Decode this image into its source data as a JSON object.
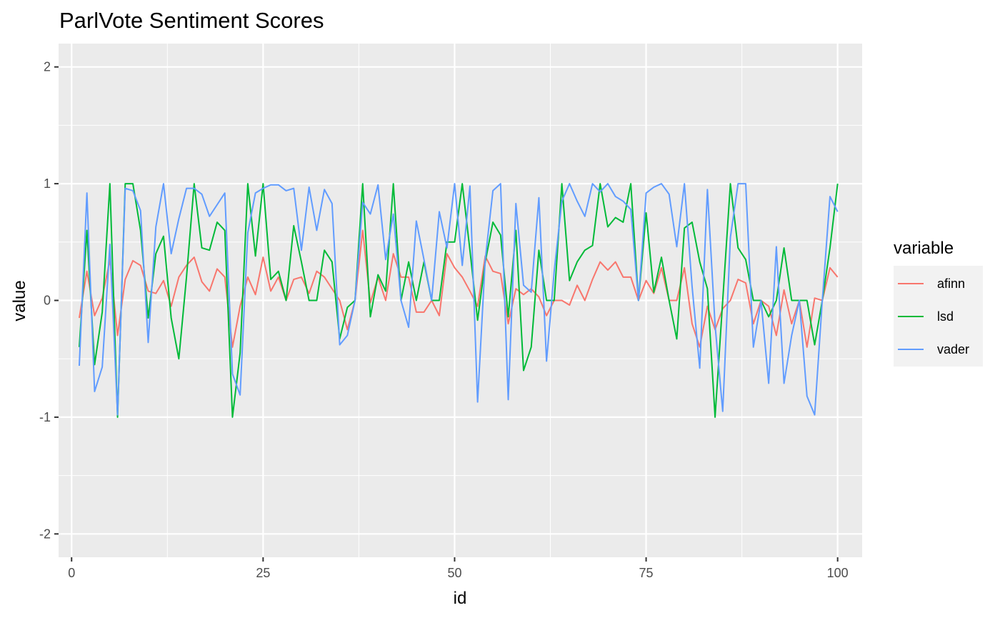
{
  "chart_data": {
    "type": "line",
    "title": "ParlVote Sentiment Scores",
    "xlabel": "id",
    "ylabel": "value",
    "xlim": [
      -1.7,
      103.2
    ],
    "ylim": [
      -2.2,
      2.2
    ],
    "x_ticks": [
      0,
      25,
      50,
      75,
      100
    ],
    "x_tick_labels": [
      "0",
      "25",
      "50",
      "75",
      "100"
    ],
    "y_ticks": [
      -2,
      -1,
      0,
      1,
      2
    ],
    "y_tick_labels": [
      "-2",
      "-1",
      "0",
      "1",
      "2"
    ],
    "grid": true,
    "legend_title": "variable",
    "legend_position": "right",
    "x": [
      1,
      2,
      3,
      4,
      5,
      6,
      7,
      8,
      9,
      10,
      11,
      12,
      13,
      14,
      15,
      16,
      17,
      18,
      19,
      20,
      21,
      22,
      23,
      24,
      25,
      26,
      27,
      28,
      29,
      30,
      31,
      32,
      33,
      34,
      35,
      36,
      37,
      38,
      39,
      40,
      41,
      42,
      43,
      44,
      45,
      46,
      47,
      48,
      49,
      50,
      51,
      52,
      53,
      54,
      55,
      56,
      57,
      58,
      59,
      60,
      61,
      62,
      63,
      64,
      65,
      66,
      67,
      68,
      69,
      70,
      71,
      72,
      73,
      74,
      75,
      76,
      77,
      78,
      79,
      80,
      81,
      82,
      83,
      84,
      85,
      86,
      87,
      88,
      89,
      90,
      91,
      92,
      93,
      94,
      95,
      96,
      97,
      98,
      99,
      100
    ],
    "series": [
      {
        "name": "afinn",
        "color": "#F8766D",
        "values": [
          -0.15,
          0.25,
          -0.13,
          0.02,
          0.35,
          -0.3,
          0.18,
          0.34,
          0.3,
          0.08,
          0.06,
          0.17,
          -0.05,
          0.2,
          0.3,
          0.37,
          0.16,
          0.08,
          0.27,
          0.2,
          -0.4,
          -0.05,
          0.2,
          0.05,
          0.37,
          0.08,
          0.2,
          0.0,
          0.18,
          0.2,
          0.06,
          0.25,
          0.2,
          0.1,
          0.0,
          -0.25,
          0.0,
          0.6,
          -0.02,
          0.2,
          0.0,
          0.4,
          0.2,
          0.2,
          -0.1,
          -0.1,
          0.0,
          -0.13,
          0.4,
          0.28,
          0.2,
          0.08,
          -0.05,
          0.38,
          0.25,
          0.23,
          -0.2,
          0.1,
          0.05,
          0.1,
          0.03,
          -0.13,
          0.0,
          0.0,
          -0.04,
          0.13,
          0.0,
          0.18,
          0.33,
          0.26,
          0.33,
          0.2,
          0.2,
          0.0,
          0.17,
          0.06,
          0.28,
          0.0,
          0.0,
          0.28,
          -0.2,
          -0.4,
          -0.05,
          -0.25,
          -0.07,
          0.0,
          0.18,
          0.15,
          -0.2,
          0.0,
          -0.05,
          -0.3,
          0.09,
          -0.2,
          0.0,
          -0.4,
          0.02,
          0.0,
          0.28,
          0.2
        ]
      },
      {
        "name": "lsd",
        "color": "#00BA38",
        "values": [
          -0.4,
          0.6,
          -0.55,
          -0.1,
          1.0,
          -1.0,
          1.0,
          1.0,
          0.6,
          -0.15,
          0.4,
          0.55,
          -0.15,
          -0.5,
          0.2,
          1.0,
          0.45,
          0.43,
          0.67,
          0.6,
          -1.0,
          -0.45,
          1.0,
          0.38,
          1.0,
          0.18,
          0.25,
          0.0,
          0.64,
          0.33,
          0.0,
          0.0,
          0.43,
          0.33,
          -0.33,
          -0.06,
          0.0,
          1.0,
          -0.14,
          0.22,
          0.08,
          1.0,
          0.0,
          0.33,
          0.0,
          0.33,
          0.0,
          0.0,
          0.5,
          0.5,
          1.0,
          0.43,
          -0.17,
          0.33,
          0.67,
          0.56,
          -0.14,
          0.6,
          -0.6,
          -0.4,
          0.43,
          0.0,
          0.0,
          1.0,
          0.17,
          0.33,
          0.43,
          0.47,
          1.0,
          0.63,
          0.71,
          0.67,
          1.0,
          0.0,
          0.75,
          0.07,
          0.37,
          0.0,
          -0.33,
          0.62,
          0.67,
          0.33,
          0.1,
          -1.0,
          0.0,
          1.0,
          0.45,
          0.35,
          0.0,
          0.0,
          -0.14,
          0.0,
          0.45,
          0.0,
          0.0,
          0.0,
          -0.38,
          0.0,
          0.45,
          1.0
        ]
      },
      {
        "name": "vader",
        "color": "#619CFF",
        "values": [
          -0.56,
          0.92,
          -0.78,
          -0.57,
          0.48,
          -0.98,
          0.96,
          0.94,
          0.77,
          -0.36,
          0.63,
          1.0,
          0.4,
          0.7,
          0.96,
          0.96,
          0.91,
          0.72,
          0.82,
          0.92,
          -0.63,
          -0.81,
          0.58,
          0.92,
          0.96,
          0.99,
          0.99,
          0.94,
          0.96,
          0.43,
          0.97,
          0.6,
          0.95,
          0.83,
          -0.38,
          -0.3,
          0.0,
          0.84,
          0.74,
          0.99,
          0.35,
          0.74,
          0.0,
          -0.23,
          0.68,
          0.35,
          0.0,
          0.76,
          0.45,
          1.0,
          0.3,
          0.98,
          -0.87,
          0.35,
          0.94,
          1.0,
          -0.85,
          0.83,
          0.13,
          0.07,
          0.88,
          -0.52,
          0.25,
          0.85,
          1.0,
          0.85,
          0.72,
          1.0,
          0.93,
          1.0,
          0.89,
          0.85,
          0.78,
          0.0,
          0.92,
          0.97,
          1.0,
          0.91,
          0.46,
          1.0,
          0.12,
          -0.58,
          0.95,
          -0.21,
          -0.95,
          0.54,
          1.0,
          1.0,
          -0.4,
          0.0,
          -0.71,
          0.46,
          -0.71,
          -0.3,
          0.0,
          -0.82,
          -0.98,
          0.0,
          0.89,
          0.76
        ]
      }
    ]
  }
}
